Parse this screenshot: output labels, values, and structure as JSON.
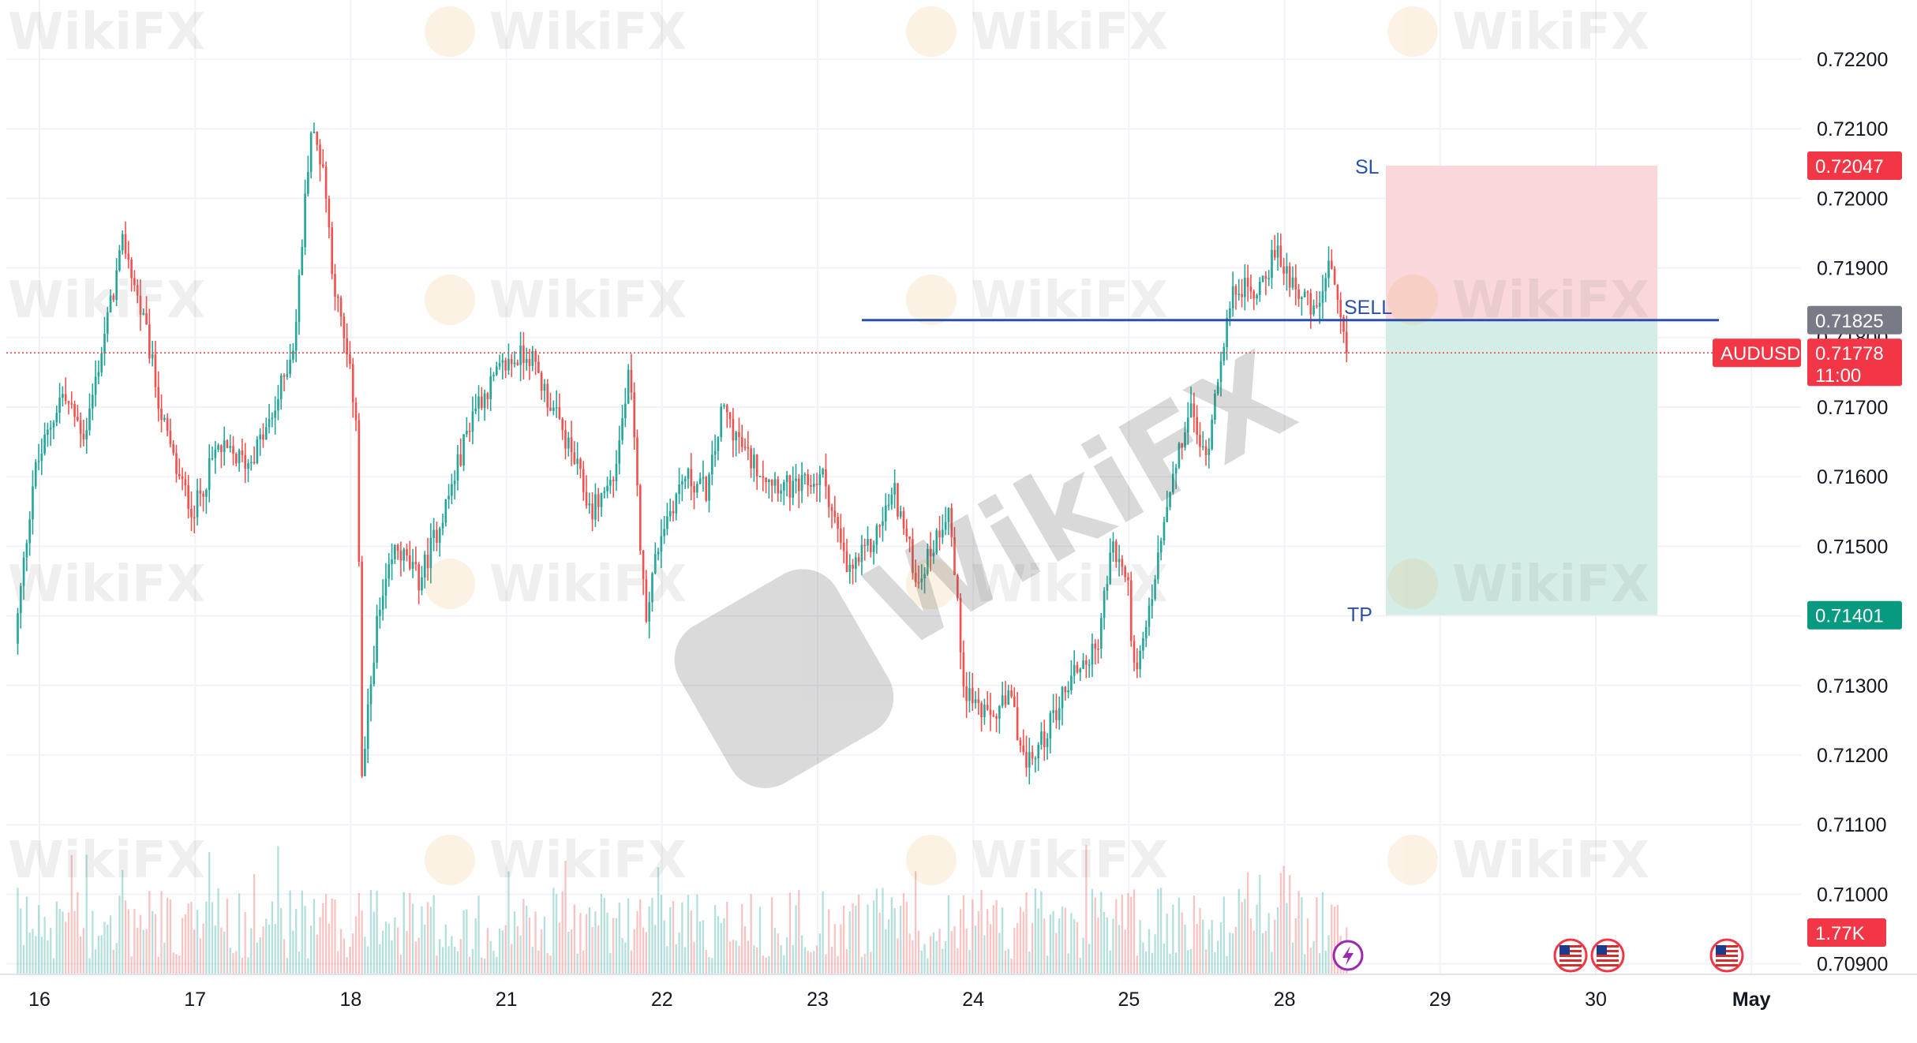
{
  "chart_data": {
    "type": "candlestick",
    "symbol": "AUDUSD",
    "x_axis_labels": [
      "16",
      "17",
      "18",
      "21",
      "22",
      "23",
      "24",
      "25",
      "28",
      "29",
      "30",
      "May"
    ],
    "y_axis_labels": [
      "0.72200",
      "0.72100",
      "0.72000",
      "0.71900",
      "0.71800",
      "0.71700",
      "0.71600",
      "0.71500",
      "0.71400",
      "0.71300",
      "0.71200",
      "0.71100",
      "0.71000",
      "0.70900"
    ],
    "ylim": [
      0.70885,
      0.72255
    ],
    "grid": true,
    "price_path": [
      {
        "day": 0.0,
        "price": 0.7136
      },
      {
        "day": 0.12,
        "price": 0.716
      },
      {
        "day": 0.3,
        "price": 0.7172
      },
      {
        "day": 0.45,
        "price": 0.7166
      },
      {
        "day": 0.6,
        "price": 0.7183
      },
      {
        "day": 0.7,
        "price": 0.7194
      },
      {
        "day": 0.85,
        "price": 0.718
      },
      {
        "day": 0.95,
        "price": 0.7168
      },
      {
        "day": 1.05,
        "price": 0.716
      },
      {
        "day": 1.15,
        "price": 0.7155
      },
      {
        "day": 1.3,
        "price": 0.7164
      },
      {
        "day": 1.5,
        "price": 0.7162
      },
      {
        "day": 1.65,
        "price": 0.7168
      },
      {
        "day": 1.8,
        "price": 0.718
      },
      {
        "day": 1.9,
        "price": 0.721
      },
      {
        "day": 1.98,
        "price": 0.7205
      },
      {
        "day": 2.05,
        "price": 0.7188
      },
      {
        "day": 2.15,
        "price": 0.7175
      },
      {
        "day": 2.2,
        "price": 0.7168
      },
      {
        "day": 2.23,
        "price": 0.7116
      },
      {
        "day": 2.32,
        "price": 0.7138
      },
      {
        "day": 2.45,
        "price": 0.715
      },
      {
        "day": 2.6,
        "price": 0.7145
      },
      {
        "day": 2.8,
        "price": 0.7158
      },
      {
        "day": 2.95,
        "price": 0.717
      },
      {
        "day": 3.15,
        "price": 0.7176
      },
      {
        "day": 3.3,
        "price": 0.7178
      },
      {
        "day": 3.45,
        "price": 0.717
      },
      {
        "day": 3.6,
        "price": 0.7162
      },
      {
        "day": 3.7,
        "price": 0.7155
      },
      {
        "day": 3.85,
        "price": 0.716
      },
      {
        "day": 3.95,
        "price": 0.7175
      },
      {
        "day": 4.05,
        "price": 0.714
      },
      {
        "day": 4.15,
        "price": 0.7152
      },
      {
        "day": 4.3,
        "price": 0.716
      },
      {
        "day": 4.45,
        "price": 0.7158
      },
      {
        "day": 4.55,
        "price": 0.717
      },
      {
        "day": 4.7,
        "price": 0.7163
      },
      {
        "day": 4.85,
        "price": 0.716
      },
      {
        "day": 5.0,
        "price": 0.7158
      },
      {
        "day": 5.2,
        "price": 0.716
      },
      {
        "day": 5.35,
        "price": 0.7146
      },
      {
        "day": 5.5,
        "price": 0.715
      },
      {
        "day": 5.65,
        "price": 0.7158
      },
      {
        "day": 5.8,
        "price": 0.7145
      },
      {
        "day": 5.9,
        "price": 0.715
      },
      {
        "day": 6.0,
        "price": 0.7156
      },
      {
        "day": 6.1,
        "price": 0.713
      },
      {
        "day": 6.25,
        "price": 0.7125
      },
      {
        "day": 6.4,
        "price": 0.7128
      },
      {
        "day": 6.5,
        "price": 0.7118
      },
      {
        "day": 6.6,
        "price": 0.7122
      },
      {
        "day": 6.8,
        "price": 0.7132
      },
      {
        "day": 6.95,
        "price": 0.7135
      },
      {
        "day": 7.05,
        "price": 0.715
      },
      {
        "day": 7.15,
        "price": 0.7145
      },
      {
        "day": 7.2,
        "price": 0.713
      },
      {
        "day": 7.3,
        "price": 0.7142
      },
      {
        "day": 7.4,
        "price": 0.7155
      },
      {
        "day": 7.55,
        "price": 0.717
      },
      {
        "day": 7.65,
        "price": 0.7162
      },
      {
        "day": 7.75,
        "price": 0.7178
      },
      {
        "day": 7.85,
        "price": 0.7188
      },
      {
        "day": 7.95,
        "price": 0.7186
      },
      {
        "day": 8.1,
        "price": 0.7192
      },
      {
        "day": 8.25,
        "price": 0.7187
      },
      {
        "day": 8.35,
        "price": 0.7183
      },
      {
        "day": 8.45,
        "price": 0.719
      },
      {
        "day": 8.55,
        "price": 0.71778
      }
    ],
    "volume_max_label": "1.77K",
    "annotations": {
      "sl_label": "SL",
      "sell_label": "SELL",
      "tp_label": "TP",
      "sl_price": 0.72047,
      "entry_price": 0.71825,
      "tp_price": 0.71401,
      "current_price": 0.71778
    },
    "price_tags": {
      "sl": "0.72047",
      "entry": "0.71825",
      "current": "0.71778",
      "countdown": "11:00",
      "tp": "0.71401",
      "volume": "1.77K",
      "symbol": "AUDUSD"
    }
  },
  "watermark": "WikiFX",
  "colors": {
    "up": "#26a69a",
    "down": "#ef5350",
    "sl_zone": "#f9d0d3",
    "tp_zone": "#cdebe3",
    "entry_line": "#2a50a8",
    "tag_red": "#f23645",
    "tag_green": "#089981",
    "tag_gray": "#787b86"
  }
}
